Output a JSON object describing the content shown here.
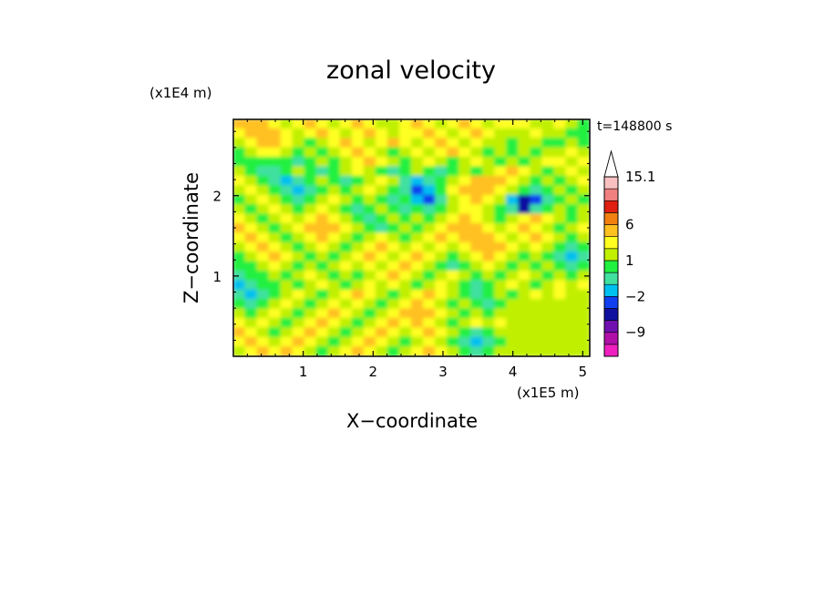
{
  "chart_data": {
    "type": "heatmap",
    "title": "zonal velocity",
    "xlabel": "X−coordinate",
    "ylabel": "Z−coordinate",
    "x_units": "(x1E5 m)",
    "y_units": "(x1E4 m)",
    "time_label": "t=148800 s",
    "xlim": [
      0,
      5.1
    ],
    "ylim": [
      0,
      2.95
    ],
    "x_ticks": [
      1,
      2,
      3,
      4,
      5
    ],
    "y_ticks": [
      1,
      2
    ],
    "x_tick_labels": [
      "1",
      "2",
      "3",
      "4",
      "5"
    ],
    "y_tick_labels": [
      "1",
      "2"
    ],
    "colorbar": {
      "levels": [
        -15,
        -12,
        -9,
        -6,
        -3,
        -2,
        -1,
        0,
        1,
        2,
        3,
        6,
        9,
        12,
        15.1
      ],
      "colors": [
        "#f020c0",
        "#b010a8",
        "#7010b0",
        "#1010a0",
        "#1040f0",
        "#00c0f0",
        "#40e0a0",
        "#20f040",
        "#c0f000",
        "#ffff20",
        "#ffc020",
        "#f08010",
        "#e02010",
        "#f08080",
        "#f8c0c0"
      ],
      "tick_labels": [
        {
          "value": 15.1,
          "text": "15.1"
        },
        {
          "value": 6,
          "text": "6"
        },
        {
          "value": 1,
          "text": "1"
        },
        {
          "value": -2,
          "text": "−2"
        },
        {
          "value": -9,
          "text": "−9"
        }
      ],
      "extend": "max"
    },
    "field": [
      [
        3,
        4,
        3,
        2,
        1,
        2,
        3,
        2,
        1,
        2,
        3,
        2,
        1,
        1,
        2,
        3,
        2,
        1,
        2,
        3,
        2,
        1,
        2,
        2,
        2,
        1,
        1,
        2,
        1,
        0
      ],
      [
        2,
        3,
        4,
        3,
        2,
        1,
        2,
        3,
        2,
        1,
        2,
        3,
        2,
        1,
        2,
        2,
        3,
        2,
        1,
        2,
        3,
        2,
        1,
        1,
        1,
        2,
        1,
        1,
        0,
        0
      ],
      [
        1,
        2,
        3,
        4,
        2,
        1,
        0,
        1,
        2,
        3,
        2,
        1,
        2,
        3,
        2,
        1,
        2,
        3,
        2,
        1,
        2,
        1,
        1,
        0,
        1,
        1,
        0,
        0,
        1,
        0
      ],
      [
        0,
        1,
        2,
        2,
        1,
        0,
        1,
        0,
        1,
        2,
        3,
        2,
        1,
        0,
        1,
        2,
        1,
        2,
        3,
        2,
        1,
        0,
        1,
        0,
        1,
        0,
        1,
        1,
        2,
        1
      ],
      [
        0,
        0,
        0,
        0,
        0,
        -1,
        0,
        1,
        0,
        1,
        2,
        3,
        2,
        1,
        0,
        1,
        2,
        1,
        0,
        1,
        2,
        1,
        0,
        1,
        0,
        1,
        2,
        2,
        1,
        2
      ],
      [
        1,
        0,
        -1,
        -1,
        0,
        1,
        0,
        -1,
        0,
        1,
        2,
        1,
        0,
        -1,
        0,
        1,
        0,
        -1,
        0,
        1,
        0,
        1,
        2,
        3,
        2,
        1,
        0,
        1,
        2,
        1
      ],
      [
        2,
        1,
        0,
        -1,
        -2,
        -1,
        0,
        1,
        0,
        -1,
        0,
        1,
        2,
        1,
        -1,
        -2,
        -1,
        0,
        1,
        2,
        3,
        4,
        3,
        2,
        1,
        0,
        1,
        0,
        1,
        2
      ],
      [
        1,
        2,
        1,
        0,
        -1,
        -2,
        -1,
        0,
        1,
        0,
        1,
        2,
        1,
        0,
        -1,
        -3,
        -2,
        0,
        2,
        3,
        4,
        3,
        2,
        1,
        0,
        -1,
        0,
        1,
        0,
        1
      ],
      [
        0,
        1,
        2,
        1,
        0,
        -1,
        0,
        1,
        2,
        1,
        0,
        1,
        0,
        -1,
        0,
        -2,
        -3,
        -1,
        1,
        2,
        3,
        2,
        1,
        -2,
        -6,
        -3,
        -1,
        0,
        1,
        0
      ],
      [
        1,
        0,
        1,
        2,
        1,
        0,
        1,
        2,
        1,
        0,
        -1,
        0,
        1,
        0,
        -1,
        0,
        -1,
        0,
        1,
        2,
        2,
        1,
        0,
        -1,
        -4,
        -1,
        0,
        1,
        0,
        1
      ],
      [
        2,
        1,
        0,
        1,
        2,
        1,
        2,
        3,
        2,
        1,
        0,
        -1,
        0,
        1,
        0,
        1,
        0,
        1,
        2,
        3,
        2,
        1,
        0,
        1,
        2,
        3,
        2,
        1,
        0,
        1
      ],
      [
        3,
        2,
        1,
        0,
        1,
        2,
        3,
        4,
        3,
        2,
        1,
        0,
        -1,
        0,
        1,
        0,
        1,
        2,
        3,
        4,
        3,
        2,
        1,
        2,
        3,
        2,
        1,
        0,
        1,
        2
      ],
      [
        2,
        3,
        2,
        1,
        0,
        1,
        2,
        3,
        2,
        1,
        0,
        1,
        2,
        1,
        0,
        1,
        2,
        3,
        2,
        3,
        4,
        3,
        2,
        1,
        2,
        3,
        2,
        1,
        0,
        1
      ],
      [
        1,
        2,
        3,
        2,
        1,
        0,
        1,
        2,
        1,
        0,
        1,
        2,
        3,
        2,
        1,
        2,
        1,
        2,
        1,
        2,
        3,
        4,
        3,
        2,
        1,
        2,
        1,
        0,
        -1,
        0
      ],
      [
        0,
        1,
        2,
        3,
        2,
        1,
        0,
        1,
        0,
        1,
        2,
        3,
        2,
        1,
        2,
        3,
        2,
        1,
        0,
        1,
        2,
        3,
        2,
        1,
        0,
        1,
        0,
        -1,
        -2,
        -1
      ],
      [
        0,
        0,
        1,
        2,
        1,
        0,
        1,
        0,
        1,
        2,
        1,
        2,
        1,
        2,
        3,
        2,
        1,
        0,
        -1,
        0,
        1,
        2,
        1,
        0,
        1,
        0,
        1,
        0,
        -1,
        0
      ],
      [
        -1,
        0,
        0,
        1,
        0,
        1,
        2,
        1,
        0,
        1,
        0,
        1,
        2,
        3,
        2,
        1,
        0,
        1,
        2,
        1,
        0,
        1,
        0,
        1,
        2,
        1,
        0,
        1,
        0,
        1
      ],
      [
        -2,
        -1,
        0,
        0,
        1,
        0,
        1,
        2,
        1,
        0,
        1,
        2,
        1,
        2,
        1,
        0,
        1,
        2,
        1,
        0,
        -1,
        0,
        1,
        2,
        1,
        0,
        1,
        2,
        1,
        2
      ],
      [
        -1,
        -2,
        -1,
        0,
        1,
        2,
        1,
        0,
        1,
        2,
        3,
        2,
        1,
        0,
        1,
        2,
        3,
        2,
        1,
        0,
        -1,
        0,
        1,
        0,
        1,
        2,
        1,
        2,
        1,
        1
      ],
      [
        0,
        -1,
        0,
        1,
        2,
        1,
        0,
        1,
        2,
        1,
        2,
        1,
        0,
        1,
        2,
        3,
        2,
        1,
        0,
        1,
        0,
        -1,
        0,
        1,
        1,
        1,
        1,
        1,
        1,
        1
      ],
      [
        1,
        0,
        1,
        2,
        1,
        0,
        1,
        2,
        3,
        2,
        1,
        0,
        1,
        2,
        3,
        4,
        3,
        2,
        1,
        0,
        1,
        0,
        1,
        1,
        1,
        1,
        1,
        1,
        1,
        1
      ],
      [
        2,
        1,
        2,
        1,
        0,
        1,
        2,
        3,
        2,
        1,
        0,
        1,
        2,
        3,
        2,
        3,
        2,
        1,
        0,
        1,
        2,
        1,
        2,
        1,
        1,
        1,
        1,
        1,
        1,
        1
      ],
      [
        3,
        2,
        1,
        0,
        1,
        2,
        3,
        2,
        1,
        0,
        1,
        2,
        3,
        2,
        1,
        2,
        3,
        2,
        1,
        0,
        -1,
        0,
        1,
        1,
        1,
        1,
        1,
        1,
        1,
        1
      ],
      [
        2,
        3,
        2,
        1,
        2,
        3,
        2,
        1,
        0,
        1,
        2,
        3,
        2,
        1,
        0,
        1,
        2,
        1,
        0,
        -1,
        -2,
        -1,
        0,
        1,
        1,
        1,
        1,
        1,
        1,
        1
      ],
      [
        1,
        2,
        3,
        2,
        3,
        2,
        1,
        0,
        1,
        2,
        3,
        2,
        1,
        0,
        1,
        2,
        3,
        2,
        1,
        0,
        -1,
        0,
        1,
        1,
        1,
        1,
        1,
        1,
        1,
        1
      ]
    ]
  }
}
